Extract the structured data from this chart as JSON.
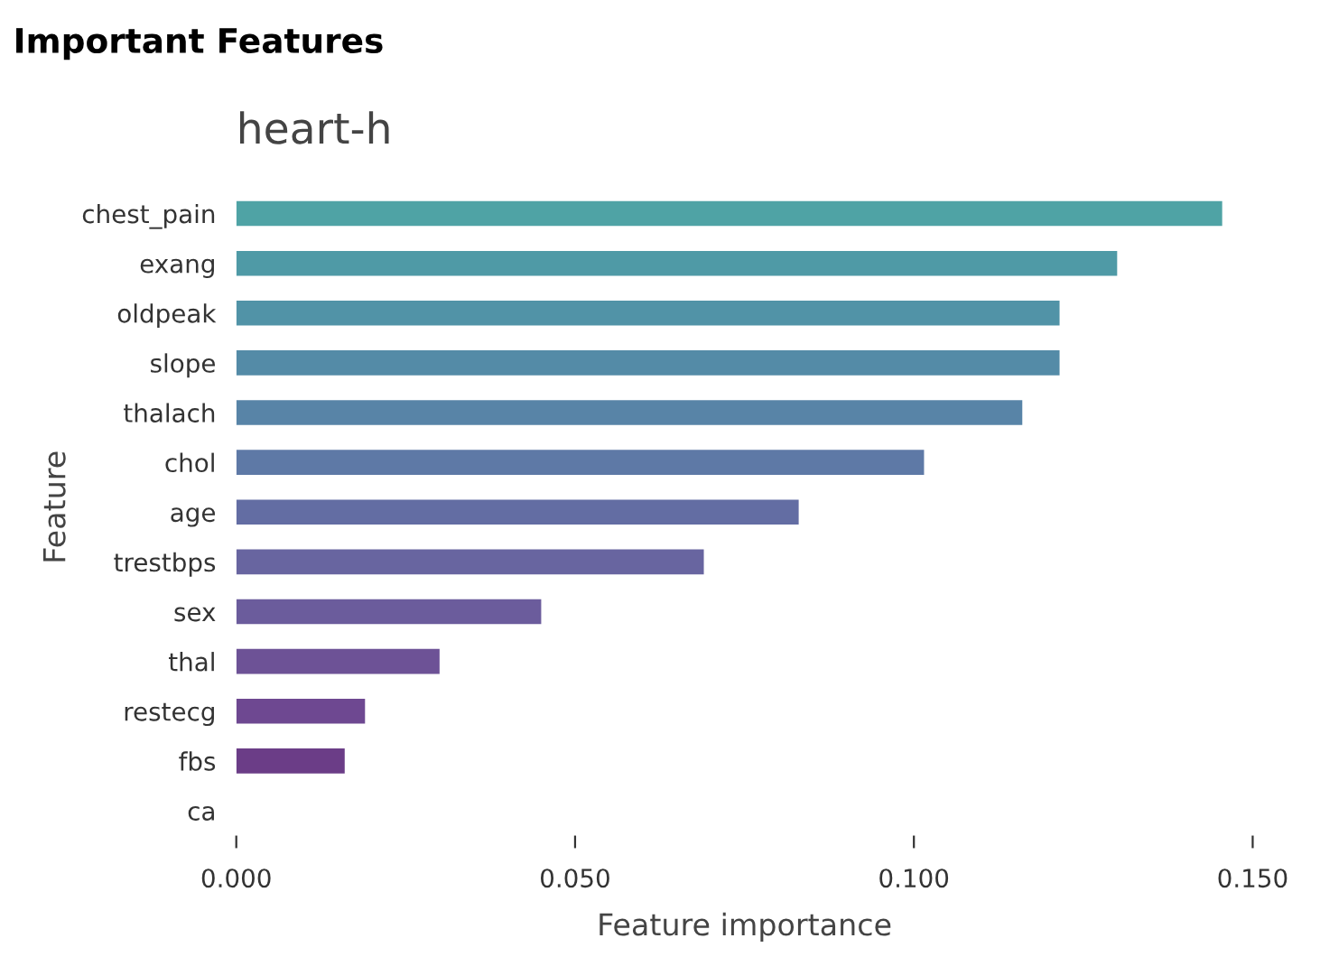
{
  "chart_data": {
    "type": "bar",
    "orientation": "horizontal",
    "title": "Important Features",
    "subtitle": "heart-h",
    "xlabel": "Feature importance",
    "ylabel": "Feature",
    "categories": [
      "chest_pain",
      "exang",
      "oldpeak",
      "slope",
      "thalach",
      "chol",
      "age",
      "trestbps",
      "sex",
      "thal",
      "restecg",
      "fbs",
      "ca"
    ],
    "values": [
      0.1455,
      0.13,
      0.1215,
      0.1215,
      0.116,
      0.1015,
      0.083,
      0.069,
      0.045,
      0.03,
      0.019,
      0.016,
      0
    ],
    "colors": [
      "#4fa3a5",
      "#4f9aa6",
      "#5193a7",
      "#548ba7",
      "#5884a7",
      "#5e79a6",
      "#636da3",
      "#6865a0",
      "#6b5c9c",
      "#6d5296",
      "#6e4891",
      "#6b3d87",
      "#673380"
    ],
    "xlim": [
      0,
      0.15
    ],
    "xticks": [
      {
        "value": 0,
        "label": "0.000"
      },
      {
        "value": 0.05,
        "label": "0.050"
      },
      {
        "value": 0.1,
        "label": "0.100"
      },
      {
        "value": 0.15,
        "label": "0.150"
      }
    ],
    "grid": false,
    "legend": false
  }
}
